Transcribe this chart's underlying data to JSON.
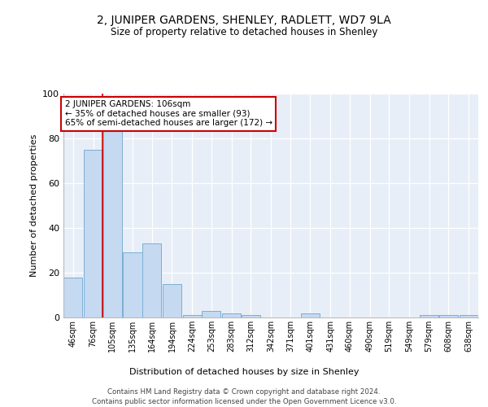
{
  "title": "2, JUNIPER GARDENS, SHENLEY, RADLETT, WD7 9LA",
  "subtitle": "Size of property relative to detached houses in Shenley",
  "xlabel": "Distribution of detached houses by size in Shenley",
  "ylabel": "Number of detached properties",
  "bin_labels": [
    "46sqm",
    "76sqm",
    "105sqm",
    "135sqm",
    "164sqm",
    "194sqm",
    "224sqm",
    "253sqm",
    "283sqm",
    "312sqm",
    "342sqm",
    "371sqm",
    "401sqm",
    "431sqm",
    "460sqm",
    "490sqm",
    "519sqm",
    "549sqm",
    "579sqm",
    "608sqm",
    "638sqm"
  ],
  "bar_heights": [
    18,
    75,
    85,
    29,
    33,
    15,
    1,
    3,
    2,
    1,
    0,
    0,
    2,
    0,
    0,
    0,
    0,
    0,
    1,
    1,
    1
  ],
  "bar_color": "#c5d9f1",
  "bar_edge_color": "#7bafd4",
  "bg_color": "#e8eef7",
  "annotation_text": "2 JUNIPER GARDENS: 106sqm\n← 35% of detached houses are smaller (93)\n65% of semi-detached houses are larger (172) →",
  "annotation_box_color": "#ffffff",
  "annotation_box_edge": "#cc0000",
  "vline_x": 105,
  "vline_color": "#cc0000",
  "ylim": [
    0,
    100
  ],
  "yticks": [
    0,
    20,
    40,
    60,
    80,
    100
  ],
  "footer": "Contains HM Land Registry data © Crown copyright and database right 2024.\nContains public sector information licensed under the Open Government Licence v3.0."
}
